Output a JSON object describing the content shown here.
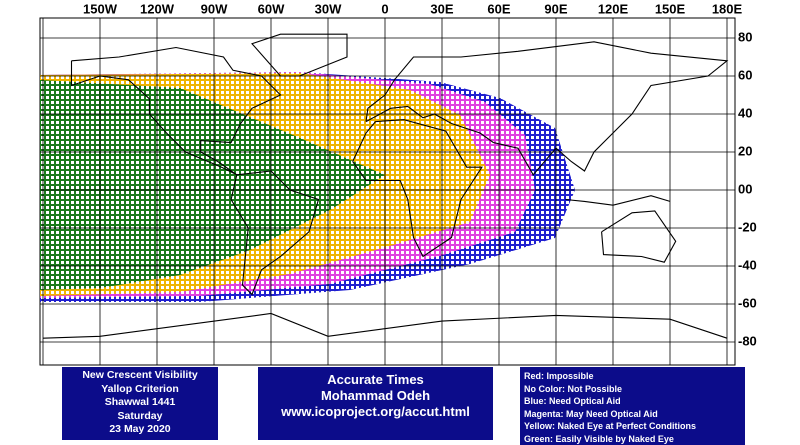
{
  "map": {
    "lon_labels": [
      "150W",
      "120W",
      "90W",
      "60W",
      "30W",
      "0",
      "30E",
      "60E",
      "90E",
      "120E",
      "150E",
      "180E"
    ],
    "lat_labels": [
      "80",
      "60",
      "40",
      "20",
      "00",
      "-20",
      "-40",
      "-60",
      "-80"
    ]
  },
  "info_left": {
    "lines": [
      "New Crescent Visibility",
      "Yallop Criterion",
      "Shawwal 1441",
      "Saturday",
      "23 May 2020"
    ]
  },
  "info_center": {
    "lines": [
      "Accurate Times",
      "Mohammad Odeh",
      "www.icoproject.org/accut.html"
    ]
  },
  "legend": {
    "lines": [
      "Red: Impossible",
      "No Color: Not Possible",
      "Blue: Need Optical Aid",
      "Magenta: May Need Optical Aid",
      "Yellow: Naked Eye at Perfect Conditions",
      "Green: Easily Visible by Naked Eye"
    ]
  }
}
